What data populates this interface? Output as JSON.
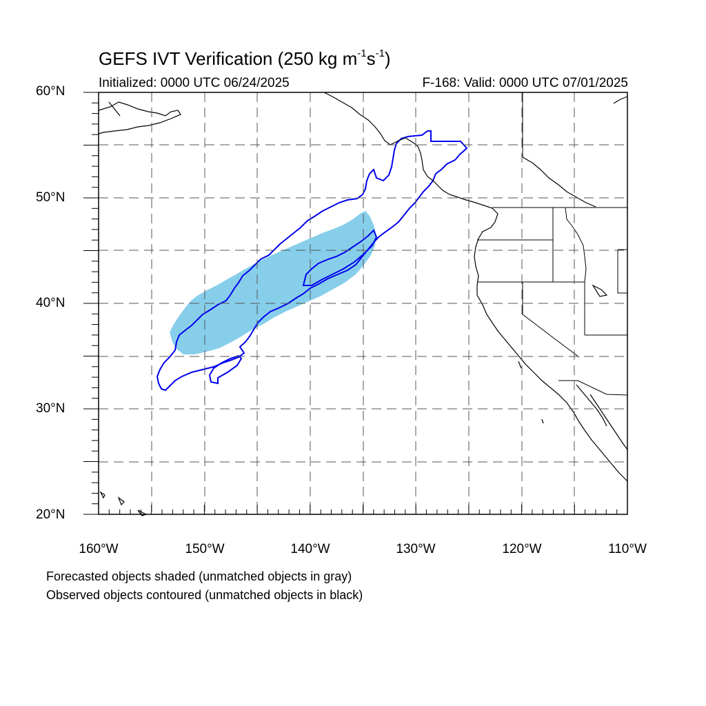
{
  "title": {
    "main": "GEFS IVT Verification (250 kg m",
    "exp1": "-1",
    "mid": "s",
    "exp2": "-1",
    "end": ")"
  },
  "subtitle": {
    "initialized": "Initialized: 0000 UTC 06/24/2025",
    "valid": "F-168: Valid: 0000 UTC 07/01/2025"
  },
  "lat_labels": [
    "60°N",
    "50°N",
    "40°N",
    "30°N",
    "20°N"
  ],
  "lon_labels": [
    "160°W",
    "150°W",
    "140°W",
    "130°W",
    "120°W",
    "110°W"
  ],
  "notes": [
    "Forecasted objects shaded (unmatched objects in gray)",
    "Observed objects contoured (unmatched objects in black)"
  ],
  "colors": {
    "forecast_fill": "#87CEEB",
    "observed_contour": "#0000EE",
    "coastline": "#000000",
    "gridline": "#555555"
  }
}
